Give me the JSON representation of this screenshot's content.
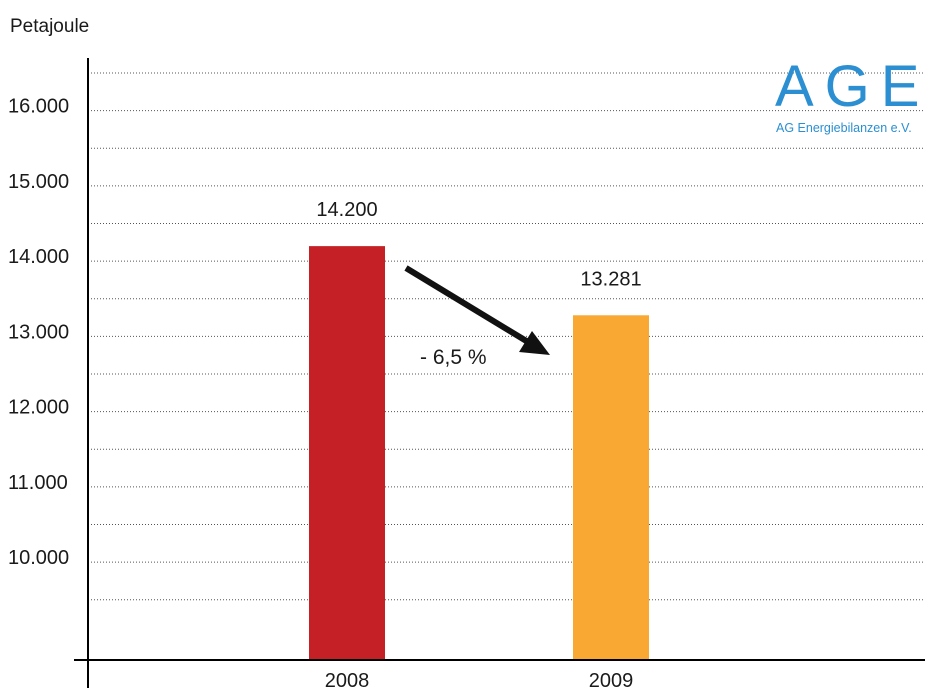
{
  "chart_data": {
    "type": "bar",
    "title": "",
    "ylabel": "Petajoule",
    "xlabel": "",
    "categories": [
      "2008",
      "2009"
    ],
    "values": [
      14200,
      13281
    ],
    "value_labels": [
      "14.200",
      "13.281"
    ],
    "bar_colors": [
      "#c42026",
      "#f9a933"
    ],
    "ylim": [
      8700,
      16700
    ],
    "yticks": [
      10000,
      11000,
      12000,
      13000,
      14000,
      15000,
      16000
    ],
    "ytick_labels": [
      "10.000",
      "11.000",
      "12.000",
      "13.000",
      "14.000",
      "15.000",
      "16.000"
    ],
    "grid": "horizontal-dotted",
    "annotation": {
      "text": "- 6,5 %",
      "arrow": "from 2008 bar to 2009 bar"
    }
  },
  "logo": {
    "name": "AGEB",
    "subtitle": "AG Energiebilanzen e.V.",
    "color": "#2b8fd2"
  }
}
